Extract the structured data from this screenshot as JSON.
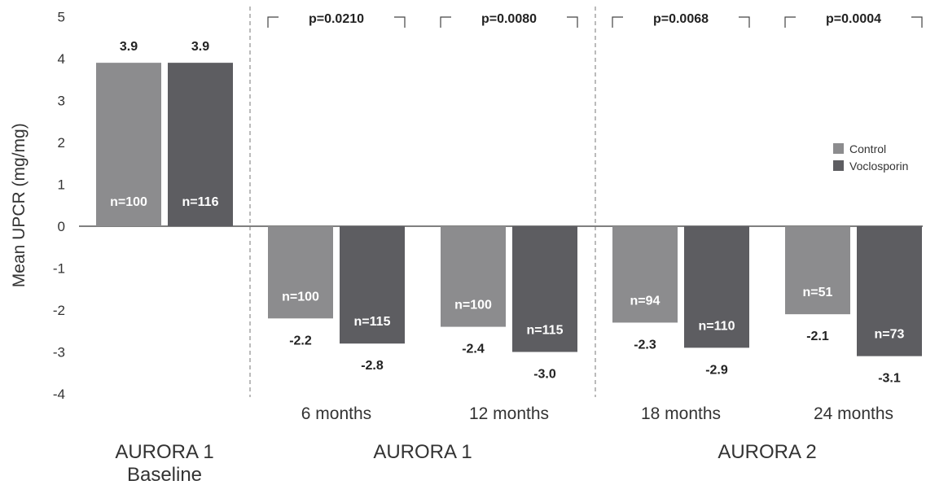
{
  "chart_data": {
    "type": "bar",
    "ylabel": "Mean UPCR (mg/mg)",
    "ylim": [
      -4,
      5
    ],
    "yticks": [
      "-4",
      "-3",
      "-2",
      "-1",
      "0",
      "1",
      "2",
      "3",
      "4",
      "5"
    ],
    "colors": {
      "Control": "#8c8c8e",
      "Voclosporin": "#5d5d61"
    },
    "legend": {
      "position": "right",
      "items": [
        "Control",
        "Voclosporin"
      ]
    },
    "categories": [
      {
        "period": "",
        "group": "AURORA 1\nBaseline",
        "p_value": "",
        "bars": [
          {
            "series": "Control",
            "value": 3.9,
            "value_label": "3.9",
            "n_label": "n=100"
          },
          {
            "series": "Voclosporin",
            "value": 3.9,
            "value_label": "3.9",
            "n_label": "n=116"
          }
        ]
      },
      {
        "period": "6 months",
        "group": "AURORA 1",
        "p_value": "p=0.0210",
        "bars": [
          {
            "series": "Control",
            "value": -2.2,
            "value_label": "-2.2",
            "n_label": "n=100"
          },
          {
            "series": "Voclosporin",
            "value": -2.8,
            "value_label": "-2.8",
            "n_label": "n=115"
          }
        ]
      },
      {
        "period": "12 months",
        "group": "AURORA 1",
        "p_value": "p=0.0080",
        "bars": [
          {
            "series": "Control",
            "value": -2.4,
            "value_label": "-2.4",
            "n_label": "n=100"
          },
          {
            "series": "Voclosporin",
            "value": -3.0,
            "value_label": "-3.0",
            "n_label": "n=115"
          }
        ]
      },
      {
        "period": "18 months",
        "group": "AURORA 2",
        "p_value": "p=0.0068",
        "bars": [
          {
            "series": "Control",
            "value": -2.3,
            "value_label": "-2.3",
            "n_label": "n=94"
          },
          {
            "series": "Voclosporin",
            "value": -2.9,
            "value_label": "-2.9",
            "n_label": "n=110"
          }
        ]
      },
      {
        "period": "24 months",
        "group": "AURORA 2",
        "p_value": "p=0.0004",
        "bars": [
          {
            "series": "Control",
            "value": -2.1,
            "value_label": "-2.1",
            "n_label": "n=51"
          },
          {
            "series": "Voclosporin",
            "value": -3.1,
            "value_label": "-3.1",
            "n_label": "n=73"
          }
        ]
      }
    ],
    "groups": [
      "AURORA 1\nBaseline",
      "AURORA 1",
      "AURORA 2"
    ]
  }
}
